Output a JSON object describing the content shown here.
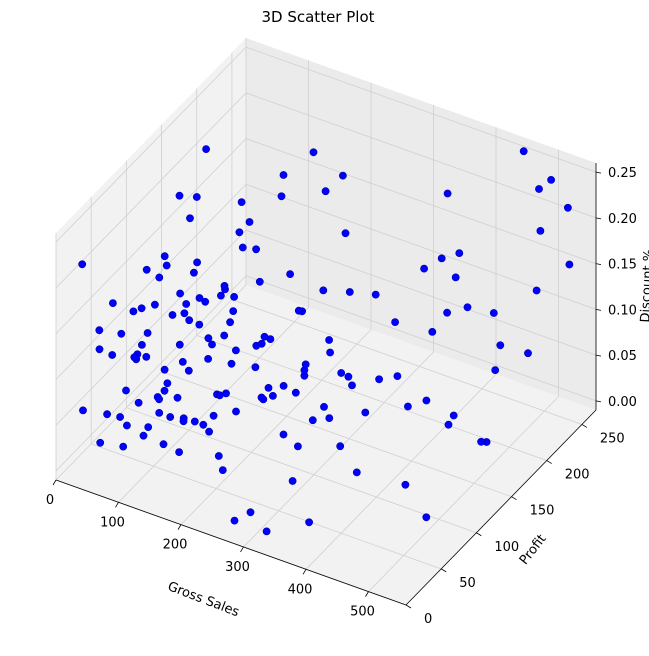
{
  "chart_data": {
    "type": "scatter3d",
    "title": "3D Scatter Plot",
    "xlabel": "Gross Sales",
    "ylabel": "Profit",
    "zlabel": "Discount %",
    "xlim": [
      0,
      560
    ],
    "ylim": [
      0,
      270
    ],
    "zlim": [
      -0.01,
      0.26
    ],
    "xticks": [
      0,
      100,
      200,
      300,
      400,
      500
    ],
    "yticks": [
      0,
      50,
      100,
      150,
      200,
      250
    ],
    "zticks": [
      "0.00",
      "0.05",
      "0.10",
      "0.15",
      "0.20",
      "0.25"
    ],
    "marker_color": "#0000ff",
    "grid": true,
    "points": [
      [
        20,
        45,
        0.0
      ],
      [
        35,
        60,
        0.02
      ],
      [
        48,
        30,
        0.05
      ],
      [
        60,
        75,
        0.08
      ],
      [
        72,
        50,
        0.1
      ],
      [
        85,
        90,
        0.12
      ],
      [
        95,
        40,
        0.03
      ],
      [
        105,
        65,
        0.07
      ],
      [
        115,
        20,
        0.15
      ],
      [
        125,
        85,
        0.18
      ],
      [
        135,
        55,
        0.01
      ],
      [
        145,
        100,
        0.04
      ],
      [
        155,
        35,
        0.09
      ],
      [
        165,
        70,
        0.13
      ],
      [
        175,
        110,
        0.2
      ],
      [
        185,
        45,
        0.06
      ],
      [
        30,
        95,
        0.11
      ],
      [
        42,
        120,
        0.14
      ],
      [
        55,
        80,
        0.17
      ],
      [
        68,
        130,
        0.19
      ],
      [
        80,
        60,
        0.02
      ],
      [
        92,
        140,
        0.05
      ],
      [
        104,
        25,
        0.08
      ],
      [
        116,
        150,
        0.1
      ],
      [
        128,
        90,
        0.12
      ],
      [
        140,
        160,
        0.15
      ],
      [
        152,
        50,
        0.18
      ],
      [
        164,
        115,
        0.21
      ],
      [
        176,
        75,
        0.0
      ],
      [
        188,
        135,
        0.03
      ],
      [
        200,
        40,
        0.06
      ],
      [
        212,
        95,
        0.09
      ],
      [
        25,
        15,
        0.22
      ],
      [
        38,
        28,
        0.12
      ],
      [
        50,
        110,
        0.16
      ],
      [
        62,
        145,
        0.2
      ],
      [
        74,
        35,
        0.04
      ],
      [
        86,
        78,
        0.07
      ],
      [
        98,
        125,
        0.11
      ],
      [
        110,
        18,
        0.14
      ],
      [
        122,
        68,
        0.17
      ],
      [
        134,
        105,
        0.01
      ],
      [
        146,
        155,
        0.05
      ],
      [
        158,
        22,
        0.08
      ],
      [
        170,
        88,
        0.12
      ],
      [
        182,
        128,
        0.15
      ],
      [
        194,
        62,
        0.19
      ],
      [
        206,
        170,
        0.02
      ],
      [
        218,
        48,
        0.1
      ],
      [
        230,
        92,
        0.13
      ],
      [
        242,
        138,
        0.06
      ],
      [
        254,
        30,
        0.17
      ],
      [
        266,
        72,
        0.09
      ],
      [
        278,
        118,
        0.03
      ],
      [
        290,
        160,
        0.14
      ],
      [
        302,
        55,
        0.07
      ],
      [
        225,
        180,
        0.11
      ],
      [
        238,
        200,
        0.16
      ],
      [
        250,
        15,
        0.05
      ],
      [
        262,
        100,
        0.2
      ],
      [
        274,
        145,
        0.01
      ],
      [
        286,
        38,
        0.12
      ],
      [
        298,
        85,
        0.18
      ],
      [
        310,
        130,
        0.08
      ],
      [
        320,
        175,
        0.04
      ],
      [
        332,
        60,
        0.15
      ],
      [
        344,
        110,
        0.1
      ],
      [
        356,
        20,
        0.06
      ],
      [
        368,
        155,
        0.13
      ],
      [
        380,
        90,
        0.02
      ],
      [
        392,
        200,
        0.17
      ],
      [
        404,
        45,
        0.09
      ],
      [
        330,
        230,
        0.12
      ],
      [
        345,
        250,
        0.19
      ],
      [
        360,
        215,
        0.07
      ],
      [
        375,
        240,
        0.14
      ],
      [
        390,
        180,
        0.03
      ],
      [
        405,
        225,
        0.1
      ],
      [
        420,
        195,
        0.16
      ],
      [
        435,
        245,
        0.05
      ],
      [
        416,
        70,
        0.11
      ],
      [
        428,
        120,
        0.08
      ],
      [
        440,
        165,
        0.15
      ],
      [
        452,
        95,
        0.02
      ],
      [
        464,
        210,
        0.12
      ],
      [
        476,
        135,
        0.06
      ],
      [
        488,
        255,
        0.18
      ],
      [
        500,
        180,
        0.09
      ],
      [
        510,
        230,
        0.14
      ],
      [
        520,
        150,
        0.04
      ],
      [
        530,
        200,
        0.1
      ],
      [
        540,
        250,
        0.16
      ],
      [
        545,
        120,
        0.07
      ],
      [
        535,
        90,
        0.12
      ],
      [
        525,
        60,
        0.03
      ],
      [
        515,
        270,
        0.2
      ],
      [
        450,
        265,
        0.25
      ],
      [
        480,
        260,
        0.22
      ],
      [
        505,
        255,
        0.24
      ],
      [
        360,
        40,
        0.0
      ],
      [
        280,
        5,
        0.01
      ],
      [
        300,
        10,
        0.02
      ],
      [
        320,
        15,
        0.0
      ],
      [
        240,
        170,
        0.23
      ],
      [
        150,
        190,
        0.21
      ],
      [
        100,
        175,
        0.18
      ],
      [
        60,
        160,
        0.24
      ],
      [
        40,
        140,
        0.2
      ],
      [
        200,
        230,
        0.19
      ],
      [
        170,
        215,
        0.22
      ],
      [
        130,
        205,
        0.17
      ],
      [
        90,
        195,
        0.14
      ],
      [
        15,
        25,
        0.05
      ],
      [
        28,
        55,
        0.09
      ],
      [
        45,
        70,
        0.13
      ],
      [
        58,
        10,
        0.16
      ],
      [
        66,
        88,
        0.01
      ],
      [
        78,
        42,
        0.11
      ],
      [
        88,
        102,
        0.06
      ],
      [
        100,
        58,
        0.19
      ],
      [
        112,
        82,
        0.02
      ],
      [
        120,
        38,
        0.08
      ],
      [
        132,
        72,
        0.14
      ],
      [
        142,
        28,
        0.1
      ],
      [
        150,
        64,
        0.04
      ],
      [
        160,
        98,
        0.16
      ],
      [
        168,
        32,
        0.07
      ],
      [
        178,
        58,
        0.12
      ],
      [
        22,
        80,
        0.03
      ],
      [
        34,
        100,
        0.08
      ],
      [
        46,
        52,
        0.12
      ],
      [
        54,
        128,
        0.05
      ],
      [
        64,
        24,
        0.18
      ],
      [
        76,
        115,
        0.1
      ],
      [
        84,
        66,
        0.15
      ],
      [
        94,
        12,
        0.04
      ],
      [
        108,
        108,
        0.13
      ],
      [
        118,
        48,
        0.02
      ],
      [
        130,
        132,
        0.09
      ],
      [
        138,
        78,
        0.2
      ],
      [
        148,
        118,
        0.06
      ],
      [
        156,
        8,
        0.11
      ],
      [
        166,
        92,
        0.17
      ],
      [
        174,
        140,
        0.01
      ],
      [
        190,
        20,
        0.14
      ],
      [
        198,
        80,
        0.05
      ],
      [
        208,
        120,
        0.1
      ],
      [
        216,
        60,
        0.18
      ],
      [
        226,
        140,
        0.03
      ],
      [
        234,
        25,
        0.12
      ],
      [
        246,
        105,
        0.07
      ],
      [
        256,
        65,
        0.15
      ],
      [
        268,
        150,
        0.09
      ],
      [
        280,
        95,
        0.02
      ],
      [
        292,
        195,
        0.11
      ],
      [
        304,
        75,
        0.19
      ],
      [
        316,
        140,
        0.06
      ],
      [
        326,
        100,
        0.13
      ],
      [
        338,
        185,
        0.04
      ],
      [
        350,
        70,
        0.1
      ]
    ]
  }
}
